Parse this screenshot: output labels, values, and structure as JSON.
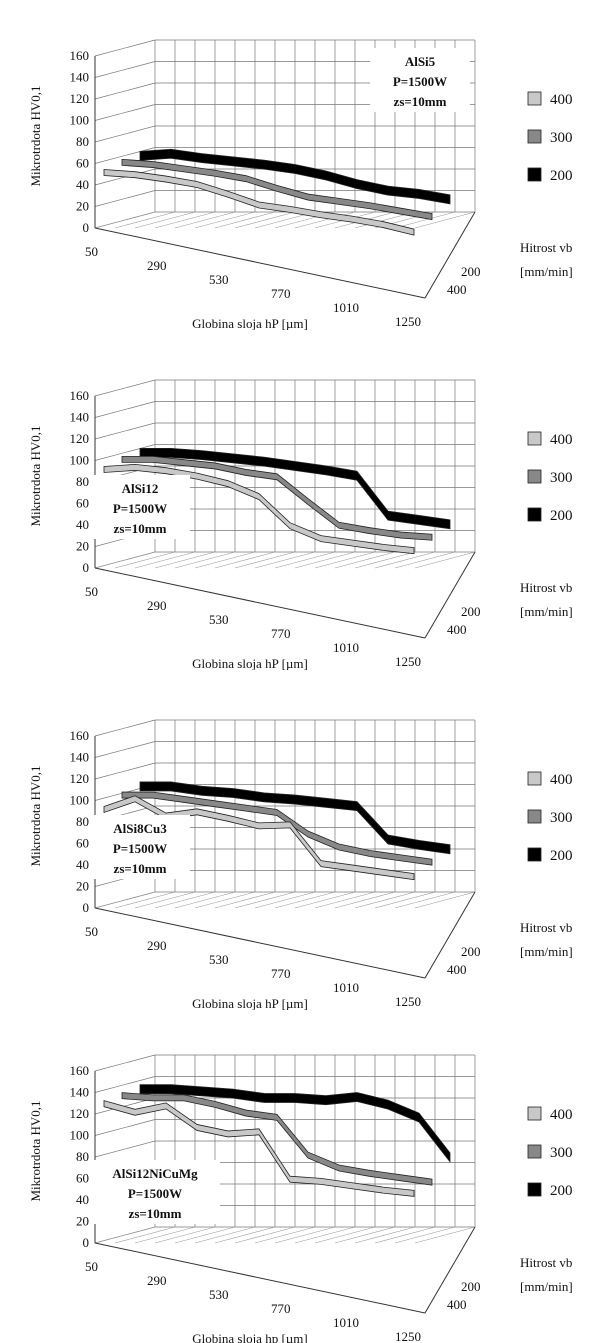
{
  "legend_colors": {
    "400": "#c8c8c8",
    "300": "#888888",
    "200": "#000000"
  },
  "chart_data": [
    {
      "type": "3d-ribbon-line",
      "ylabel": "Mikrotrdota HV0,1",
      "xlabel": "Globina sloja hP [µm]",
      "zlabel": [
        "Hitrost vb",
        "[mm/min]"
      ],
      "annotation": [
        "AlSi5",
        "P=1500W",
        "zs=10mm"
      ],
      "y_ticks": [
        0,
        20,
        40,
        60,
        80,
        100,
        120,
        140,
        160
      ],
      "x_ticks": [
        50,
        290,
        530,
        770,
        1010,
        1250
      ],
      "z_ticks": [
        200,
        400
      ],
      "ylim": [
        0,
        160
      ],
      "x": [
        50,
        170,
        290,
        410,
        530,
        650,
        770,
        890,
        1010,
        1130,
        1250
      ],
      "series": [
        {
          "name": "400",
          "values": [
            60,
            60,
            58,
            55,
            48,
            40,
            38,
            35,
            33,
            30,
            25
          ]
        },
        {
          "name": "300",
          "values": [
            62,
            62,
            60,
            58,
            55,
            48,
            42,
            40,
            38,
            35,
            32
          ]
        },
        {
          "name": "200",
          "values": [
            62,
            66,
            64,
            63,
            62,
            60,
            56,
            50,
            46,
            45,
            42
          ]
        }
      ]
    },
    {
      "type": "3d-ribbon-line",
      "ylabel": "Mikrotrdota HV0,1",
      "xlabel": "Globina sloja hP [µm]",
      "zlabel": [
        "Hitrost vb",
        "[mm/min]"
      ],
      "annotation": [
        "AlSi12",
        "P=1500W",
        "zs=10mm"
      ],
      "y_ticks": [
        0,
        20,
        40,
        60,
        80,
        100,
        120,
        140,
        160
      ],
      "x_ticks": [
        50,
        290,
        530,
        770,
        1010,
        1250
      ],
      "z_ticks": [
        200,
        400
      ],
      "ylim": [
        0,
        160
      ],
      "x": [
        50,
        170,
        290,
        410,
        530,
        650,
        770,
        890,
        1010,
        1130,
        1250
      ],
      "series": [
        {
          "name": "400",
          "values": [
            100,
            104,
            103,
            100,
            95,
            85,
            60,
            50,
            48,
            46,
            45
          ]
        },
        {
          "name": "300",
          "values": [
            102,
            104,
            103,
            102,
            98,
            96,
            75,
            55,
            52,
            50,
            50
          ]
        },
        {
          "name": "200",
          "values": [
            102,
            104,
            104,
            103,
            102,
            100,
            98,
            95,
            60,
            58,
            56
          ]
        }
      ]
    },
    {
      "type": "3d-ribbon-line",
      "ylabel": "Mikrotrdota HV0,1",
      "xlabel": "Globina sloja hP [µm]",
      "zlabel": [
        "Hitrost vb",
        "[mm/min]"
      ],
      "annotation": [
        "AlSi8Cu3",
        "P=1500W",
        "zs=10mm"
      ],
      "y_ticks": [
        0,
        20,
        40,
        60,
        80,
        100,
        120,
        140,
        160
      ],
      "x_ticks": [
        50,
        290,
        530,
        770,
        1010,
        1250
      ],
      "z_ticks": [
        200,
        400
      ],
      "ylim": [
        0,
        160
      ],
      "x": [
        50,
        170,
        290,
        410,
        530,
        650,
        770,
        890,
        1010,
        1130,
        1250
      ],
      "series": [
        {
          "name": "400",
          "values": [
            100,
            112,
            98,
            104,
            100,
            95,
            98,
            64,
            62,
            60,
            58
          ]
        },
        {
          "name": "300",
          "values": [
            106,
            108,
            106,
            104,
            102,
            100,
            82,
            72,
            68,
            66,
            64
          ]
        },
        {
          "name": "200",
          "values": [
            108,
            110,
            108,
            108,
            106,
            106,
            105,
            104,
            75,
            72,
            70
          ]
        }
      ]
    },
    {
      "type": "3d-ribbon-line",
      "ylabel": "Mikrotrdota HV0,1",
      "xlabel": "Globina sloja hp [µm]",
      "zlabel": [
        "Hitrost vb",
        "[mm/min]"
      ],
      "annotation": [
        "AlSi12NiCuMg",
        "P=1500W",
        "zs=10mm"
      ],
      "y_ticks": [
        0,
        20,
        40,
        60,
        80,
        100,
        120,
        140,
        160
      ],
      "x_ticks": [
        50,
        290,
        530,
        770,
        1010,
        1250
      ],
      "z_ticks": [
        200,
        400
      ],
      "ylim": [
        0,
        160
      ],
      "x": [
        50,
        170,
        290,
        410,
        530,
        650,
        770,
        890,
        1010,
        1130,
        1250
      ],
      "series": [
        {
          "name": "400",
          "values": [
            138,
            132,
            140,
            122,
            118,
            122,
            80,
            80,
            78,
            76,
            75
          ]
        },
        {
          "name": "300",
          "values": [
            138,
            138,
            140,
            136,
            130,
            128,
            95,
            85,
            82,
            80,
            78
          ]
        },
        {
          "name": "200",
          "values": [
            138,
            140,
            140,
            140,
            138,
            140,
            140,
            145,
            140,
            130,
            95
          ]
        }
      ]
    }
  ]
}
